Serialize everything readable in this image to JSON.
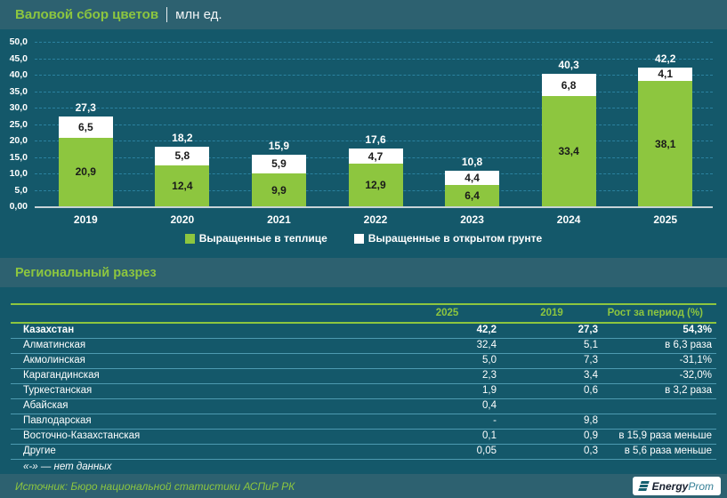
{
  "header": {
    "title": "Валовой сбор цветов",
    "unit": "млн ед."
  },
  "chart_data": {
    "type": "bar",
    "stacked": true,
    "categories": [
      "2019",
      "2020",
      "2021",
      "2022",
      "2023",
      "2024",
      "2025"
    ],
    "series": [
      {
        "name": "Выращенные в теплице",
        "color": "#8dc63f",
        "text_color": "#1a1a1a",
        "values": [
          20.9,
          12.4,
          9.9,
          12.9,
          6.4,
          33.4,
          38.1
        ]
      },
      {
        "name": "Выращенные в открытом грунте",
        "color": "#ffffff",
        "text_color": "#1a1a1a",
        "values": [
          6.5,
          5.8,
          5.9,
          4.7,
          4.4,
          6.8,
          4.1
        ]
      }
    ],
    "totals": [
      27.3,
      18.2,
      15.9,
      17.6,
      10.8,
      40.3,
      42.2
    ],
    "ylim": [
      0,
      50
    ],
    "ytick_step": 5,
    "decimal_separator": ",",
    "grid": "horizontal-dashed",
    "legend_position": "bottom"
  },
  "table": {
    "section_title": "Региональный разрез",
    "columns": [
      "",
      "2025",
      "2019",
      "Рост за период (%)"
    ],
    "rows": [
      {
        "region": "Казахстан",
        "v2025": "42,2",
        "v2019": "27,3",
        "growth": "54,3%",
        "bold": true
      },
      {
        "region": "Алматинская",
        "v2025": "32,4",
        "v2019": "5,1",
        "growth": "в 6,3 раза",
        "bold": false
      },
      {
        "region": "Акмолинская",
        "v2025": "5,0",
        "v2019": "7,3",
        "growth": "-31,1%",
        "bold": false
      },
      {
        "region": "Карагандинская",
        "v2025": "2,3",
        "v2019": "3,4",
        "growth": "-32,0%",
        "bold": false
      },
      {
        "region": "Туркестанская",
        "v2025": "1,9",
        "v2019": "0,6",
        "growth": "в 3,2 раза",
        "bold": false
      },
      {
        "region": "Абайская",
        "v2025": "0,4",
        "v2019": "",
        "growth": "",
        "bold": false
      },
      {
        "region": "Павлодарская",
        "v2025": "-",
        "v2019": "9,8",
        "growth": "",
        "bold": false
      },
      {
        "region": "Восточно-Казахстанская",
        "v2025": "0,1",
        "v2019": "0,9",
        "growth": "в 15,9 раза меньше",
        "bold": false
      },
      {
        "region": "Другие",
        "v2025": "0,05",
        "v2019": "0,3",
        "growth": "в 5,6 раза меньше",
        "bold": false
      }
    ],
    "footnote": "«-» — нет данных"
  },
  "footer": {
    "source": "Источник: Бюро национальной статистики АСПиР РК",
    "logo_bold": "Energy",
    "logo_light": "Prom"
  },
  "colors": {
    "background": "#14586a",
    "band": "#2d6170",
    "accent_green": "#8dc63f",
    "series_white": "#ffffff",
    "gridline": "#2b82a0",
    "table_line": "#4d9ab0"
  }
}
